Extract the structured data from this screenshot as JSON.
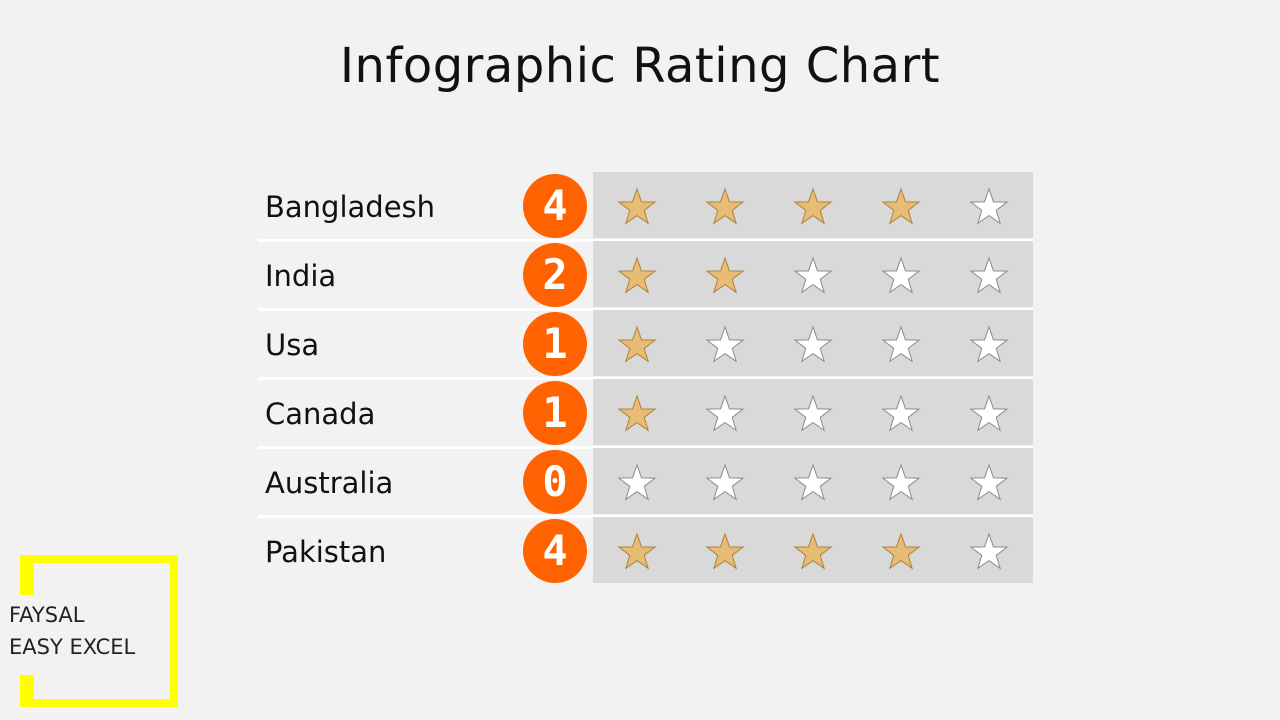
{
  "chart_data": {
    "type": "table",
    "title": "Infographic Rating Chart",
    "max_rating": 5,
    "rows": [
      {
        "label": "Bangladesh",
        "rating": 4
      },
      {
        "label": "India",
        "rating": 2
      },
      {
        "label": "Usa",
        "rating": 1
      },
      {
        "label": "Canada",
        "rating": 1
      },
      {
        "label": "Australia",
        "rating": 0
      },
      {
        "label": "Pakistan",
        "rating": 4
      }
    ],
    "colors": {
      "badge": "#ff6200",
      "star_filled": "#e9bc74",
      "star_empty": "#ffffff",
      "row_background": "#d9d9d9",
      "page_background": "#f2f2f2"
    }
  },
  "logo": {
    "line1": "FAYSAL",
    "line2": "EASY EXCEL",
    "frame_color": "#ffff00"
  }
}
